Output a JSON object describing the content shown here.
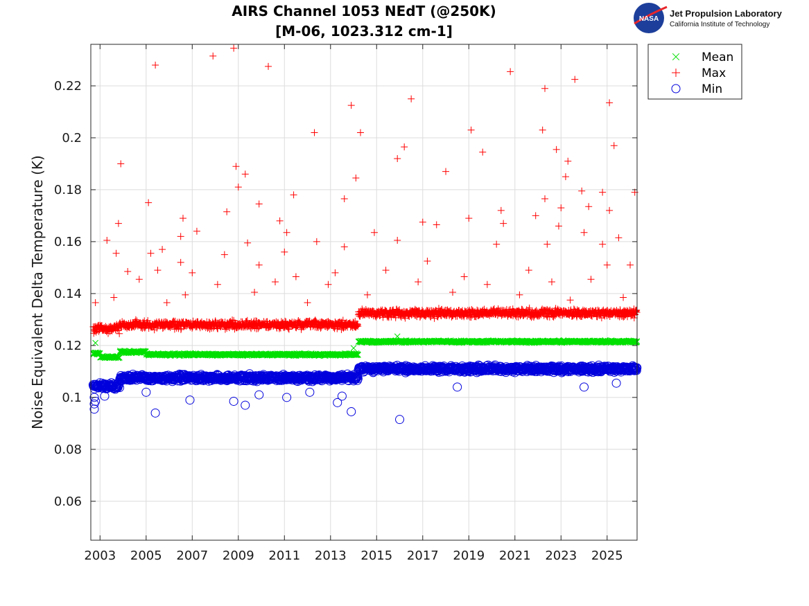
{
  "logo": {
    "emblem_text": "NASA",
    "org_name": "Jet Propulsion Laboratory",
    "org_sub": "California Institute of Technology"
  },
  "colors": {
    "mean": "#00e000",
    "max": "#ff0000",
    "min": "#0000dd",
    "grid": "#dcdcdc",
    "axes": "#262626"
  },
  "chart_data": {
    "type": "scatter",
    "title": [
      "AIRS Channel 1053 NEdT (@250K)",
      "[M-06, 1023.312 cm-1]"
    ],
    "xlabel": "",
    "ylabel": "Noise Equivalent Delta Temperature (K)",
    "xlim": [
      2002.6,
      2026.3
    ],
    "ylim": [
      0.045,
      0.236
    ],
    "x_ticks": [
      2003,
      2005,
      2007,
      2009,
      2011,
      2013,
      2015,
      2017,
      2019,
      2021,
      2023,
      2025
    ],
    "x_tick_labels": [
      "2003",
      "2005",
      "2007",
      "2009",
      "2011",
      "2013",
      "2015",
      "2017",
      "2019",
      "2021",
      "2023",
      "2025"
    ],
    "y_ticks": [
      0.06,
      0.08,
      0.1,
      0.12,
      0.14,
      0.16,
      0.18,
      0.2,
      0.22
    ],
    "y_tick_labels": [
      "0.06",
      "0.08",
      "0.1",
      "0.12",
      "0.14",
      "0.16",
      "0.18",
      "0.2",
      "0.22"
    ],
    "grid": true,
    "legend_position": "outside-top-right",
    "series": [
      {
        "name": "Mean",
        "marker": "x",
        "segments": [
          {
            "x": [
              2002.7,
              2003.0
            ],
            "level": 0.117
          },
          {
            "x": [
              2003.0,
              2003.85
            ],
            "level": 0.1155
          },
          {
            "x": [
              2003.85,
              2005.0
            ],
            "level": 0.1175
          },
          {
            "x": [
              2005.0,
              2014.2
            ],
            "level": 0.1165
          },
          {
            "x": [
              2014.2,
              2026.3
            ],
            "level": 0.1215
          }
        ],
        "outliers": [
          {
            "x": 2002.8,
            "y": 0.121
          },
          {
            "x": 2015.9,
            "y": 0.1235
          },
          {
            "x": 2014.0,
            "y": 0.119
          }
        ]
      },
      {
        "name": "Max",
        "marker": "+",
        "segments": [
          {
            "x": [
              2002.7,
              2003.85
            ],
            "level": 0.1265
          },
          {
            "x": [
              2003.85,
              2014.2
            ],
            "level": 0.128
          },
          {
            "x": [
              2014.2,
              2026.3
            ],
            "level": 0.1325
          }
        ],
        "outliers": [
          {
            "x": 2005.4,
            "y": 0.228
          },
          {
            "x": 2007.9,
            "y": 0.2315
          },
          {
            "x": 2008.8,
            "y": 0.2345
          },
          {
            "x": 2010.3,
            "y": 0.2275
          },
          {
            "x": 2020.8,
            "y": 0.2255
          },
          {
            "x": 2023.6,
            "y": 0.2225
          },
          {
            "x": 2022.3,
            "y": 0.219
          },
          {
            "x": 2016.5,
            "y": 0.215
          },
          {
            "x": 2013.9,
            "y": 0.2125
          },
          {
            "x": 2025.1,
            "y": 0.2135
          },
          {
            "x": 2019.1,
            "y": 0.203
          },
          {
            "x": 2012.3,
            "y": 0.202
          },
          {
            "x": 2014.3,
            "y": 0.202
          },
          {
            "x": 2022.2,
            "y": 0.203
          },
          {
            "x": 2025.3,
            "y": 0.197
          },
          {
            "x": 2016.2,
            "y": 0.1965
          },
          {
            "x": 2019.6,
            "y": 0.1945
          },
          {
            "x": 2022.8,
            "y": 0.1955
          },
          {
            "x": 2015.9,
            "y": 0.192
          },
          {
            "x": 2023.3,
            "y": 0.191
          },
          {
            "x": 2003.9,
            "y": 0.19
          },
          {
            "x": 2008.9,
            "y": 0.189
          },
          {
            "x": 2009.3,
            "y": 0.186
          },
          {
            "x": 2014.1,
            "y": 0.1845
          },
          {
            "x": 2018.0,
            "y": 0.187
          },
          {
            "x": 2023.2,
            "y": 0.185
          },
          {
            "x": 2009.0,
            "y": 0.181
          },
          {
            "x": 2011.4,
            "y": 0.178
          },
          {
            "x": 2026.2,
            "y": 0.179
          },
          {
            "x": 2024.8,
            "y": 0.179
          },
          {
            "x": 2023.9,
            "y": 0.1795
          },
          {
            "x": 2013.6,
            "y": 0.1765
          },
          {
            "x": 2022.3,
            "y": 0.1765
          },
          {
            "x": 2005.1,
            "y": 0.175
          },
          {
            "x": 2009.9,
            "y": 0.1745
          },
          {
            "x": 2024.2,
            "y": 0.1735
          },
          {
            "x": 2023.0,
            "y": 0.173
          },
          {
            "x": 2025.1,
            "y": 0.172
          },
          {
            "x": 2020.4,
            "y": 0.172
          },
          {
            "x": 2008.5,
            "y": 0.1715
          },
          {
            "x": 2021.9,
            "y": 0.17
          },
          {
            "x": 2006.6,
            "y": 0.169
          },
          {
            "x": 2019.0,
            "y": 0.169
          },
          {
            "x": 2010.8,
            "y": 0.168
          },
          {
            "x": 2017.0,
            "y": 0.1675
          },
          {
            "x": 2017.6,
            "y": 0.1665
          },
          {
            "x": 2003.8,
            "y": 0.167
          },
          {
            "x": 2020.5,
            "y": 0.167
          },
          {
            "x": 2022.9,
            "y": 0.166
          },
          {
            "x": 2007.2,
            "y": 0.164
          },
          {
            "x": 2011.1,
            "y": 0.1635
          },
          {
            "x": 2014.9,
            "y": 0.1635
          },
          {
            "x": 2024.0,
            "y": 0.1635
          },
          {
            "x": 2006.5,
            "y": 0.162
          },
          {
            "x": 2025.5,
            "y": 0.1615
          },
          {
            "x": 2003.3,
            "y": 0.1605
          },
          {
            "x": 2015.9,
            "y": 0.1605
          },
          {
            "x": 2012.4,
            "y": 0.16
          },
          {
            "x": 2009.4,
            "y": 0.1595
          },
          {
            "x": 2022.4,
            "y": 0.159
          },
          {
            "x": 2024.8,
            "y": 0.159
          },
          {
            "x": 2020.2,
            "y": 0.159
          },
          {
            "x": 2013.6,
            "y": 0.158
          },
          {
            "x": 2005.7,
            "y": 0.157
          },
          {
            "x": 2011.0,
            "y": 0.156
          },
          {
            "x": 2005.2,
            "y": 0.1555
          },
          {
            "x": 2003.7,
            "y": 0.1555
          },
          {
            "x": 2008.4,
            "y": 0.155
          },
          {
            "x": 2017.2,
            "y": 0.1525
          },
          {
            "x": 2006.5,
            "y": 0.152
          },
          {
            "x": 2009.9,
            "y": 0.151
          },
          {
            "x": 2025.0,
            "y": 0.151
          },
          {
            "x": 2026.0,
            "y": 0.151
          },
          {
            "x": 2005.5,
            "y": 0.149
          },
          {
            "x": 2021.6,
            "y": 0.149
          },
          {
            "x": 2015.4,
            "y": 0.149
          },
          {
            "x": 2007.0,
            "y": 0.148
          },
          {
            "x": 2013.2,
            "y": 0.148
          },
          {
            "x": 2004.2,
            "y": 0.1485
          },
          {
            "x": 2011.5,
            "y": 0.1465
          },
          {
            "x": 2018.8,
            "y": 0.1465
          },
          {
            "x": 2024.3,
            "y": 0.1455
          },
          {
            "x": 2004.7,
            "y": 0.1455
          },
          {
            "x": 2010.6,
            "y": 0.1445
          },
          {
            "x": 2019.8,
            "y": 0.1435
          },
          {
            "x": 2016.8,
            "y": 0.1445
          },
          {
            "x": 2008.1,
            "y": 0.1435
          },
          {
            "x": 2012.9,
            "y": 0.1435
          },
          {
            "x": 2022.6,
            "y": 0.1445
          },
          {
            "x": 2003.6,
            "y": 0.1385
          },
          {
            "x": 2006.7,
            "y": 0.1395
          },
          {
            "x": 2009.7,
            "y": 0.1405
          },
          {
            "x": 2018.3,
            "y": 0.1405
          },
          {
            "x": 2021.2,
            "y": 0.1395
          },
          {
            "x": 2025.7,
            "y": 0.1385
          },
          {
            "x": 2014.6,
            "y": 0.1395
          },
          {
            "x": 2002.8,
            "y": 0.1365
          },
          {
            "x": 2005.9,
            "y": 0.1365
          },
          {
            "x": 2012.0,
            "y": 0.1365
          },
          {
            "x": 2023.4,
            "y": 0.1375
          }
        ]
      },
      {
        "name": "Min",
        "marker": "o",
        "segments": [
          {
            "x": [
              2002.7,
              2003.85
            ],
            "level": 0.1045
          },
          {
            "x": [
              2003.85,
              2014.2
            ],
            "level": 0.1075
          },
          {
            "x": [
              2014.2,
              2026.3
            ],
            "level": 0.111
          }
        ],
        "outliers": [
          {
            "x": 2002.75,
            "y": 0.0955
          },
          {
            "x": 2002.75,
            "y": 0.0975
          },
          {
            "x": 2002.8,
            "y": 0.0985
          },
          {
            "x": 2002.75,
            "y": 0.1
          },
          {
            "x": 2005.4,
            "y": 0.094
          },
          {
            "x": 2006.9,
            "y": 0.099
          },
          {
            "x": 2008.8,
            "y": 0.0985
          },
          {
            "x": 2009.3,
            "y": 0.097
          },
          {
            "x": 2011.1,
            "y": 0.1
          },
          {
            "x": 2013.3,
            "y": 0.098
          },
          {
            "x": 2013.5,
            "y": 0.1005
          },
          {
            "x": 2013.9,
            "y": 0.0945
          },
          {
            "x": 2016.0,
            "y": 0.0915
          },
          {
            "x": 2018.5,
            "y": 0.104
          },
          {
            "x": 2024.0,
            "y": 0.104
          },
          {
            "x": 2003.2,
            "y": 0.1005
          },
          {
            "x": 2005.0,
            "y": 0.102
          },
          {
            "x": 2012.1,
            "y": 0.102
          },
          {
            "x": 2009.9,
            "y": 0.101
          },
          {
            "x": 2025.4,
            "y": 0.1055
          }
        ]
      }
    ]
  }
}
